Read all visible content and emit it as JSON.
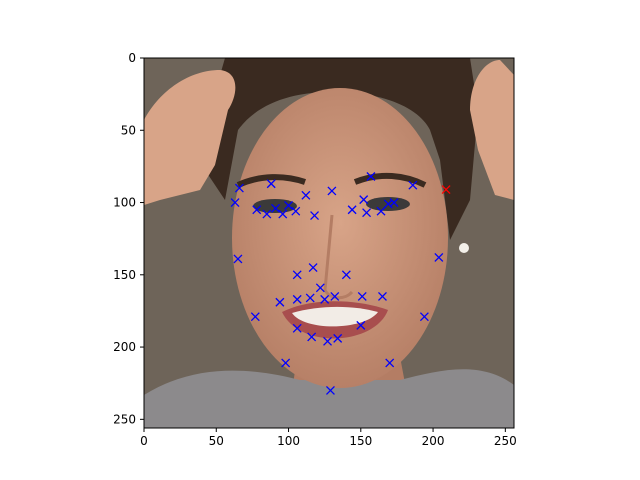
{
  "image": {
    "description_icon": "face-photo",
    "colors": {
      "background": "#6e6459",
      "hair": "#3a2a20",
      "skin": "#d8a488",
      "skin_shadow": "#b47d64",
      "shirt": "#8c8a8c",
      "lips": "#a84e4e",
      "teeth": "#f2ece6"
    }
  },
  "chart_data": {
    "type": "scatter",
    "title": "",
    "xlabel": "",
    "ylabel": "",
    "xlim": [
      0,
      256
    ],
    "ylim": [
      256,
      0
    ],
    "x_ticks": [
      "0",
      "50",
      "100",
      "150",
      "200",
      "250"
    ],
    "y_ticks": [
      "0",
      "50",
      "100",
      "150",
      "200",
      "250"
    ],
    "grid": false,
    "series": [
      {
        "marker": "x",
        "color": "#0000ff",
        "points": [
          [
            66,
            90
          ],
          [
            88,
            87
          ],
          [
            112,
            95
          ],
          [
            130,
            92
          ],
          [
            157,
            82
          ],
          [
            186,
            88
          ],
          [
            63,
            100
          ],
          [
            78,
            105
          ],
          [
            85,
            108
          ],
          [
            91,
            104
          ],
          [
            96,
            108
          ],
          [
            100,
            102
          ],
          [
            105,
            106
          ],
          [
            118,
            109
          ],
          [
            144,
            105
          ],
          [
            152,
            98
          ],
          [
            154,
            107
          ],
          [
            164,
            106
          ],
          [
            169,
            101
          ],
          [
            173,
            100
          ],
          [
            65,
            139
          ],
          [
            106,
            150
          ],
          [
            117,
            145
          ],
          [
            140,
            150
          ],
          [
            204,
            138
          ],
          [
            122,
            159
          ],
          [
            77,
            179
          ],
          [
            94,
            169
          ],
          [
            106,
            167
          ],
          [
            115,
            166
          ],
          [
            125,
            167
          ],
          [
            132,
            165
          ],
          [
            151,
            165
          ],
          [
            165,
            165
          ],
          [
            150,
            185
          ],
          [
            106,
            187
          ],
          [
            116,
            193
          ],
          [
            127,
            196
          ],
          [
            134,
            194
          ],
          [
            98,
            211
          ],
          [
            170,
            211
          ],
          [
            194,
            179
          ],
          [
            129,
            230
          ]
        ]
      },
      {
        "marker": "x",
        "color": "#ff0000",
        "points": [
          [
            209,
            91
          ]
        ]
      }
    ]
  }
}
